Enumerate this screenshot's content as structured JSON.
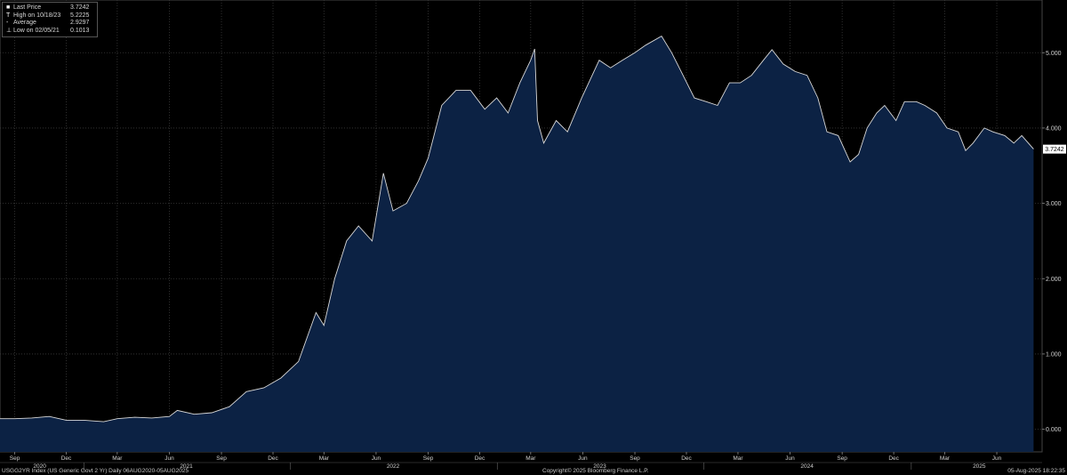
{
  "legend": {
    "items": [
      {
        "marker": "■",
        "label": "Last Price",
        "value": "3.7242"
      },
      {
        "marker": "T",
        "label": "High on 10/18/23",
        "value": "5.2225"
      },
      {
        "marker": "-",
        "label": "Average",
        "value": "2.9297"
      },
      {
        "marker": "⊥",
        "label": "Low on 02/05/21",
        "value": "0.1013"
      }
    ]
  },
  "footer": {
    "left": "USGG2YR Index (US Generic Govt 2 Yr)  Daily 06AUG2020-05AUG2025",
    "center": "Copyright© 2025 Bloomberg Finance L.P.",
    "right": "05-Aug-2025  18:22:35"
  },
  "colors": {
    "background": "#000000",
    "area": "#0c2244",
    "line": "#d8d8d8",
    "grid": "#3a3a3a"
  },
  "chart_data": {
    "type": "area",
    "title": "",
    "xlabel": "",
    "ylabel": "",
    "ylim": [
      -0.3,
      5.7
    ],
    "xlim": [
      "2020-08-06",
      "2025-08-20"
    ],
    "y_ticks": [
      "0.000",
      "1.000",
      "2.000",
      "3.000",
      "4.000",
      "5.000"
    ],
    "last_value_label": "3.7242",
    "month_ticks": [
      {
        "date": "2020-09-01",
        "label": "Sep"
      },
      {
        "date": "2020-12-01",
        "label": "Dec"
      },
      {
        "date": "2021-03-01",
        "label": "Mar"
      },
      {
        "date": "2021-06-01",
        "label": "Jun"
      },
      {
        "date": "2021-09-01",
        "label": "Sep"
      },
      {
        "date": "2021-12-01",
        "label": "Dec"
      },
      {
        "date": "2022-03-01",
        "label": "Mar"
      },
      {
        "date": "2022-06-01",
        "label": "Jun"
      },
      {
        "date": "2022-09-01",
        "label": "Sep"
      },
      {
        "date": "2022-12-01",
        "label": "Dec"
      },
      {
        "date": "2023-03-01",
        "label": "Mar"
      },
      {
        "date": "2023-06-01",
        "label": "Jun"
      },
      {
        "date": "2023-09-01",
        "label": "Sep"
      },
      {
        "date": "2023-12-01",
        "label": "Dec"
      },
      {
        "date": "2024-03-01",
        "label": "Mar"
      },
      {
        "date": "2024-06-01",
        "label": "Jun"
      },
      {
        "date": "2024-09-01",
        "label": "Sep"
      },
      {
        "date": "2024-12-01",
        "label": "Dec"
      },
      {
        "date": "2025-03-01",
        "label": "Mar"
      },
      {
        "date": "2025-06-01",
        "label": "Jun"
      }
    ],
    "year_labels": [
      {
        "date": "2020-10-15",
        "label": "2020"
      },
      {
        "date": "2021-07-01",
        "label": "2021"
      },
      {
        "date": "2022-07-01",
        "label": "2022"
      },
      {
        "date": "2023-07-01",
        "label": "2023"
      },
      {
        "date": "2024-07-01",
        "label": "2024"
      },
      {
        "date": "2025-05-01",
        "label": "2025"
      }
    ],
    "series": [
      {
        "x": [
          "2020-08-06",
          "2020-09-01",
          "2020-10-01",
          "2020-11-01",
          "2020-12-01",
          "2021-01-01",
          "2021-02-05",
          "2021-03-01",
          "2021-04-01",
          "2021-05-01",
          "2021-06-01",
          "2021-06-15",
          "2021-07-15",
          "2021-08-15",
          "2021-09-15",
          "2021-10-15",
          "2021-11-15",
          "2021-12-15",
          "2022-01-15",
          "2022-02-15",
          "2022-03-01",
          "2022-03-20",
          "2022-04-10",
          "2022-05-01",
          "2022-05-25",
          "2022-06-14",
          "2022-07-01",
          "2022-07-25",
          "2022-08-15",
          "2022-09-01",
          "2022-09-25",
          "2022-10-20",
          "2022-11-15",
          "2022-12-10",
          "2022-12-31",
          "2023-01-20",
          "2023-02-10",
          "2023-03-01",
          "2023-03-08",
          "2023-03-13",
          "2023-03-24",
          "2023-04-15",
          "2023-05-05",
          "2023-05-30",
          "2023-06-30",
          "2023-07-20",
          "2023-08-10",
          "2023-09-01",
          "2023-09-20",
          "2023-10-18",
          "2023-11-05",
          "2023-11-25",
          "2023-12-15",
          "2024-01-05",
          "2024-01-25",
          "2024-02-15",
          "2024-03-05",
          "2024-03-25",
          "2024-04-15",
          "2024-04-30",
          "2024-05-20",
          "2024-06-10",
          "2024-07-01",
          "2024-07-20",
          "2024-08-05",
          "2024-08-25",
          "2024-09-15",
          "2024-09-30",
          "2024-10-15",
          "2024-11-01",
          "2024-11-15",
          "2024-12-05",
          "2024-12-20",
          "2025-01-10",
          "2025-01-25",
          "2025-02-15",
          "2025-03-05",
          "2025-03-25",
          "2025-04-07",
          "2025-04-20",
          "2025-05-10",
          "2025-05-25",
          "2025-06-15",
          "2025-07-01",
          "2025-07-15",
          "2025-08-05"
        ],
        "values": [
          0.14,
          0.14,
          0.15,
          0.17,
          0.12,
          0.12,
          0.1,
          0.14,
          0.16,
          0.15,
          0.17,
          0.25,
          0.2,
          0.22,
          0.3,
          0.5,
          0.55,
          0.68,
          0.9,
          1.55,
          1.38,
          2.0,
          2.5,
          2.7,
          2.5,
          3.4,
          2.9,
          3.0,
          3.3,
          3.6,
          4.3,
          4.5,
          4.5,
          4.25,
          4.4,
          4.2,
          4.6,
          4.9,
          5.05,
          4.1,
          3.8,
          4.1,
          3.95,
          4.4,
          4.9,
          4.8,
          4.9,
          5.0,
          5.1,
          5.22,
          5.0,
          4.7,
          4.4,
          4.35,
          4.3,
          4.6,
          4.6,
          4.7,
          4.9,
          5.04,
          4.85,
          4.75,
          4.7,
          4.4,
          3.95,
          3.9,
          3.55,
          3.65,
          4.0,
          4.2,
          4.3,
          4.1,
          4.35,
          4.35,
          4.3,
          4.2,
          4.0,
          3.95,
          3.7,
          3.8,
          4.0,
          3.95,
          3.9,
          3.8,
          3.9,
          3.72
        ]
      }
    ]
  }
}
